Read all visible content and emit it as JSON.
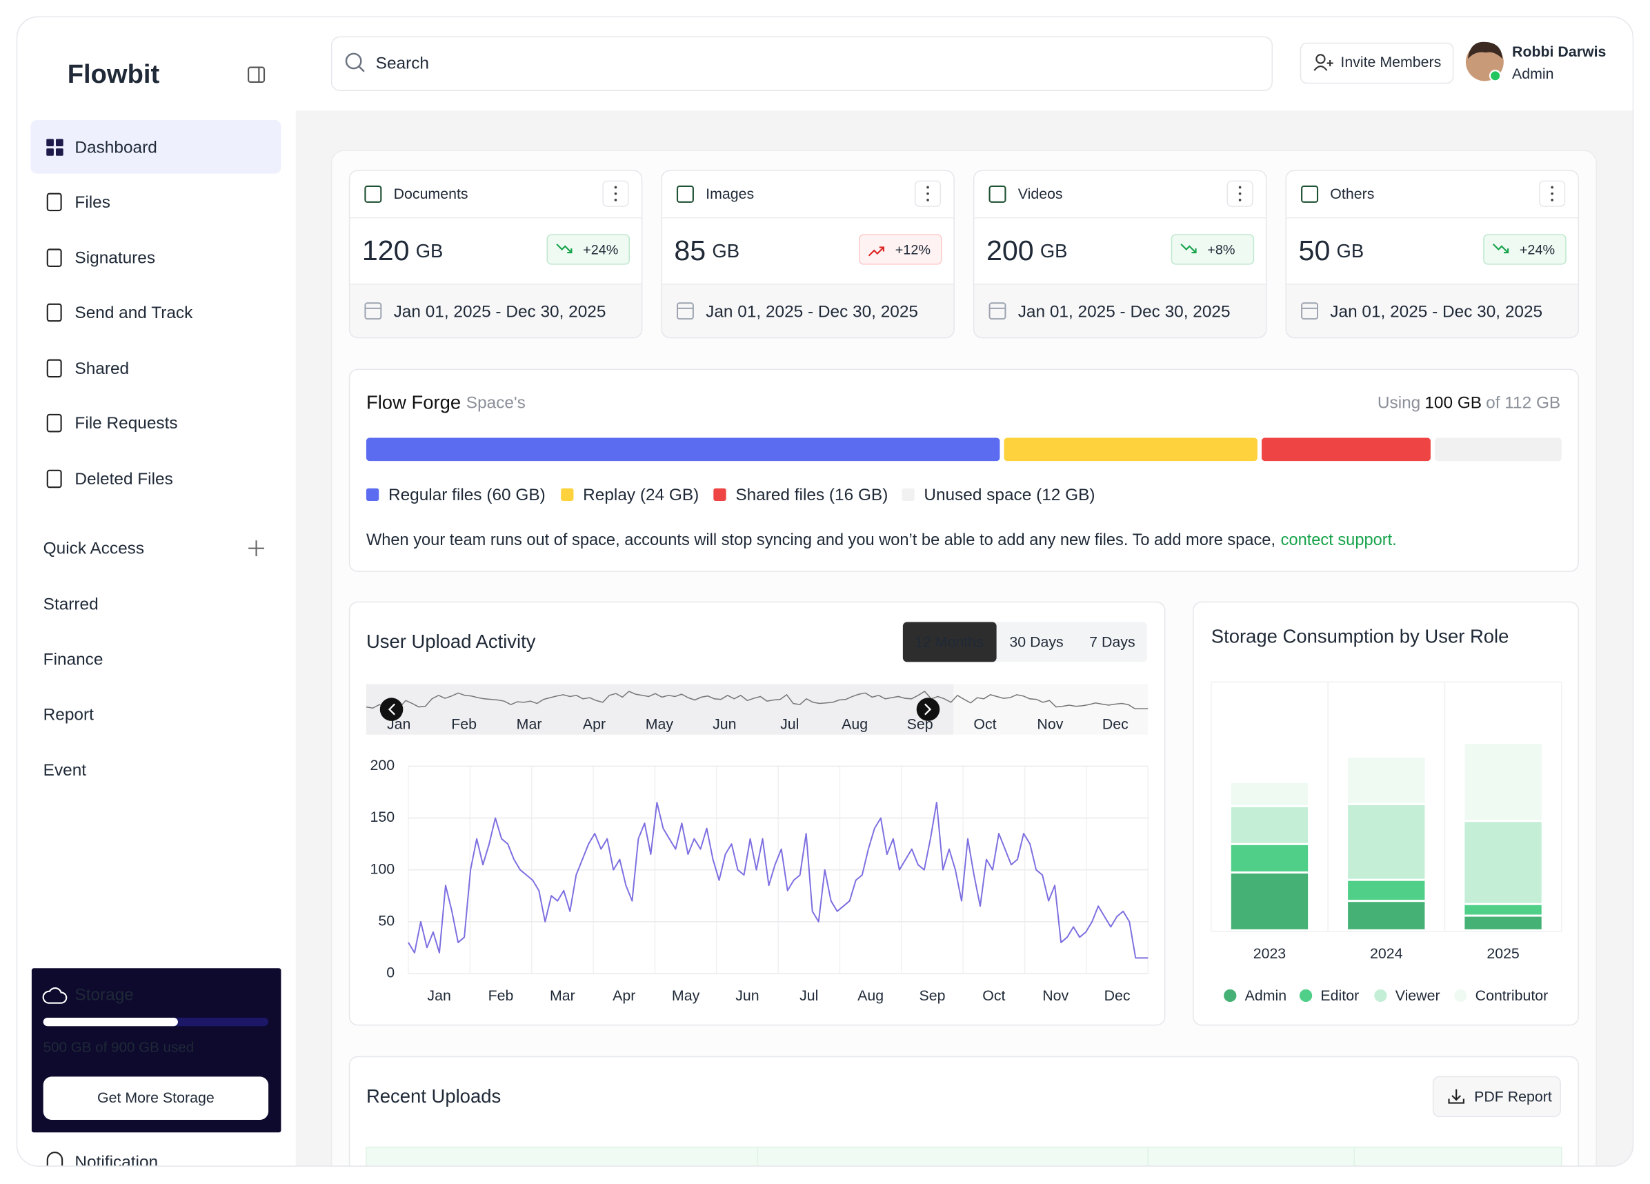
{
  "sidebar": {
    "logo": "Flowbit",
    "nav": [
      "Dashboard",
      "Files",
      "Signatures",
      "Send and Track",
      "Shared",
      "File Requests",
      "Deleted Files"
    ],
    "quick_access_title": "Quick Access",
    "quick_access": [
      "Starred",
      "Finance",
      "Report",
      "Event"
    ],
    "storage": {
      "title": "Storage",
      "used": "500 GB of 900 GB used",
      "button": "Get More Storage"
    },
    "notification": "Notification"
  },
  "header": {
    "search_placeholder": "Search",
    "invite": "Invite Members",
    "user_name": "Robbi Darwis",
    "user_role": "Admin"
  },
  "cards": [
    {
      "title": "Documents",
      "value": "120",
      "unit": "GB",
      "change": "+24%",
      "trend": "down",
      "date": "Jan 01, 2025 - Dec 30, 2025"
    },
    {
      "title": "Images",
      "value": "85",
      "unit": "GB",
      "change": "+12%",
      "trend": "up",
      "date": "Jan 01, 2025 - Dec 30, 2025"
    },
    {
      "title": "Videos",
      "value": "200",
      "unit": "GB",
      "change": "+8%",
      "trend": "down",
      "date": "Jan 01, 2025 - Dec 30, 2025"
    },
    {
      "title": "Others",
      "value": "50",
      "unit": "GB",
      "change": "+24%",
      "trend": "down",
      "date": "Jan 01, 2025 - Dec 30, 2025"
    }
  ],
  "space": {
    "title": "Flow Forge",
    "subtitle": "Space's",
    "usage_prefix": "Using",
    "usage_value": "100 GB",
    "usage_suffix": "of 112 GB",
    "segments": [
      {
        "label": "Regular files (60 GB)",
        "value": 60,
        "color": "#5b6cf0"
      },
      {
        "label": "Replay (24 GB)",
        "value": 24,
        "color": "#fdd23c"
      },
      {
        "label": "Shared files (16 GB)",
        "value": 16,
        "color": "#ef4444"
      },
      {
        "label": "Unused space (12 GB)",
        "value": 12,
        "color": "#f1f1f2"
      }
    ],
    "note": "When your team runs out of space, accounts will stop syncing and you won’t be able to add any new files. To add more space,",
    "note_link": "contect support."
  },
  "upload_tabs": [
    "12 Months",
    "30 Days",
    "7 Days"
  ],
  "chart_data": [
    {
      "type": "line",
      "title": "User Upload Activity",
      "color": "#7c6fe0",
      "xticks": [
        "Jan",
        "Feb",
        "Mar",
        "Apr",
        "May",
        "Jun",
        "Jul",
        "Aug",
        "Sep",
        "Oct",
        "Nov",
        "Dec"
      ],
      "values": [
        30,
        20,
        50,
        25,
        40,
        20,
        85,
        60,
        30,
        35,
        100,
        130,
        105,
        125,
        150,
        130,
        125,
        110,
        100,
        95,
        90,
        80,
        50,
        75,
        70,
        80,
        60,
        95,
        110,
        125,
        135,
        120,
        130,
        100,
        110,
        85,
        70,
        130,
        145,
        115,
        165,
        140,
        130,
        120,
        145,
        115,
        130,
        120,
        140,
        110,
        90,
        115,
        125,
        100,
        95,
        130,
        100,
        130,
        85,
        105,
        120,
        80,
        90,
        95,
        135,
        60,
        50,
        100,
        70,
        60,
        65,
        70,
        90,
        95,
        120,
        140,
        150,
        115,
        130,
        100,
        110,
        120,
        105,
        100,
        130,
        165,
        100,
        120,
        100,
        70,
        130,
        95,
        65,
        110,
        100,
        135,
        120,
        105,
        110,
        135,
        125,
        100,
        95,
        70,
        85,
        30,
        35,
        45,
        35,
        40,
        50,
        65,
        55,
        45,
        55,
        60,
        50,
        15,
        15,
        15
      ],
      "ylim": [
        0,
        200
      ],
      "yticks": [
        0,
        50,
        100,
        150,
        200
      ],
      "grid": true
    },
    {
      "type": "bar",
      "stacked": true,
      "title": "Storage Consumption by User Role",
      "categories": [
        "2023",
        "2024",
        "2025"
      ],
      "series": [
        {
          "name": "Admin",
          "color": "#45b175",
          "values": [
            55,
            28,
            14
          ]
        },
        {
          "name": "Editor",
          "color": "#4fcf87",
          "values": [
            27,
            20,
            11
          ]
        },
        {
          "name": "Viewer",
          "color": "#c4efd6",
          "values": [
            36,
            72,
            79
          ]
        },
        {
          "name": "Contributor",
          "color": "#eefaf2",
          "values": [
            23,
            45,
            74
          ]
        }
      ],
      "legend": "bottom"
    }
  ],
  "recent": {
    "title": "Recent Uploads",
    "button": "PDF Report"
  }
}
